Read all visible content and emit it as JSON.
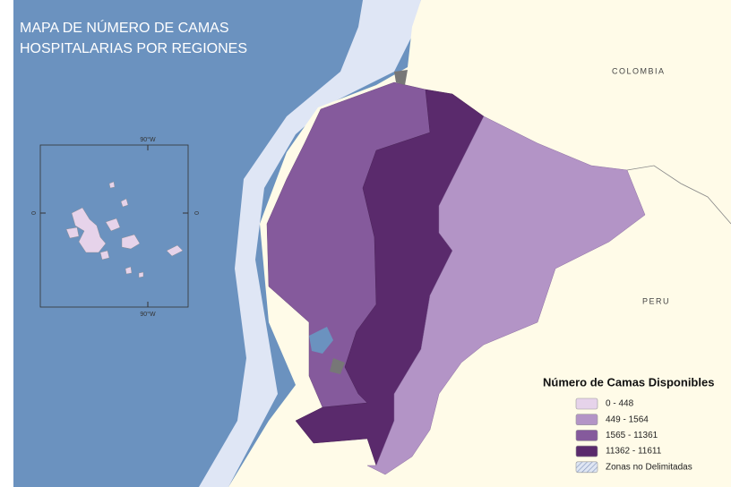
{
  "title": {
    "lines": [
      "MAPA DE NÚMERO DE CAMAS",
      "HOSPITALARIAS POR REGIONES"
    ]
  },
  "countries": [
    "COLOMBIA",
    "PERU"
  ],
  "inset": {
    "top_label": "90°W",
    "bottom_label": "90°W",
    "left_label": "0",
    "right_label": "0"
  },
  "legend": {
    "title": "Número de Camas Disponibles",
    "items": [
      {
        "label": "0 - 448",
        "color": "#e6d3ea"
      },
      {
        "label": "449 - 1564",
        "color": "#b394c6"
      },
      {
        "label": "1565 - 11361",
        "color": "#855a9c"
      },
      {
        "label": "11362 - 11611",
        "color": "#5a2a6c"
      },
      {
        "label": "Zonas no Delimitadas",
        "color": "#c9d3e6"
      }
    ]
  }
}
